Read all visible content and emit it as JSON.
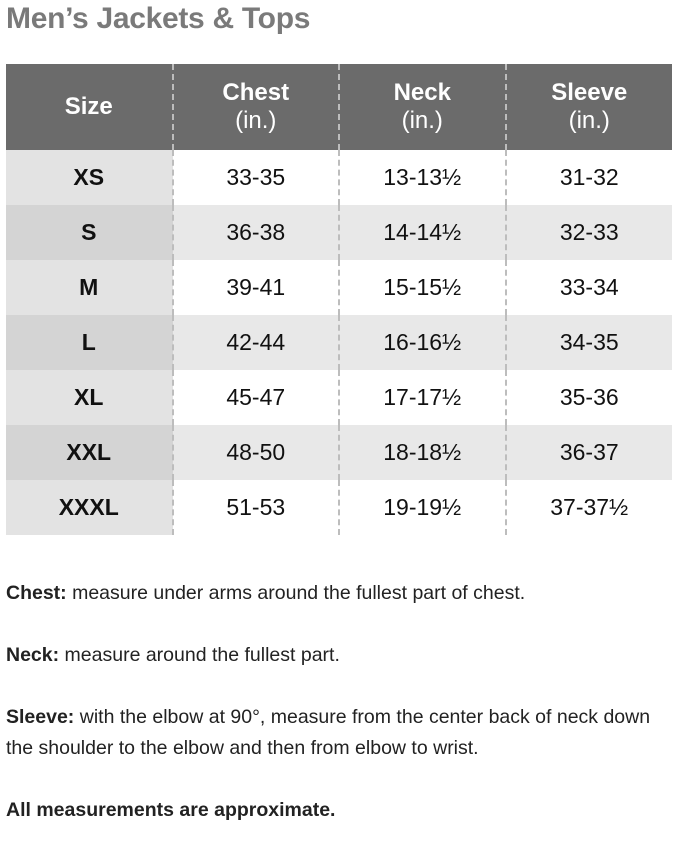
{
  "title": "Men’s Jackets & Tops",
  "table": {
    "columns": [
      [
        "Size"
      ],
      [
        "Chest",
        "(in.)"
      ],
      [
        "Neck",
        "(in.)"
      ],
      [
        "Sleeve",
        "(in.)"
      ]
    ],
    "rows": [
      [
        "XS",
        "33-35",
        "13-13½",
        "31-32"
      ],
      [
        "S",
        "36-38",
        "14-14½",
        "32-33"
      ],
      [
        "M",
        "39-41",
        "15-15½",
        "33-34"
      ],
      [
        "L",
        "42-44",
        "16-16½",
        "34-35"
      ],
      [
        "XL",
        "45-47",
        "17-17½",
        "35-36"
      ],
      [
        "XXL",
        "48-50",
        "18-18½",
        "36-37"
      ],
      [
        "XXXL",
        "51-53",
        "19-19½",
        "37-37½"
      ]
    ]
  },
  "notes": [
    {
      "term": "Chest:",
      "text": "measure under arms around the fullest part of chest."
    },
    {
      "term": "Neck:",
      "text": "measure around the fullest part."
    },
    {
      "term": "Sleeve:",
      "text": "with the elbow at 90°, measure from the center back of neck down the shoulder to the elbow and then from elbow to wrist."
    }
  ],
  "footer": "All measurements are approximate."
}
